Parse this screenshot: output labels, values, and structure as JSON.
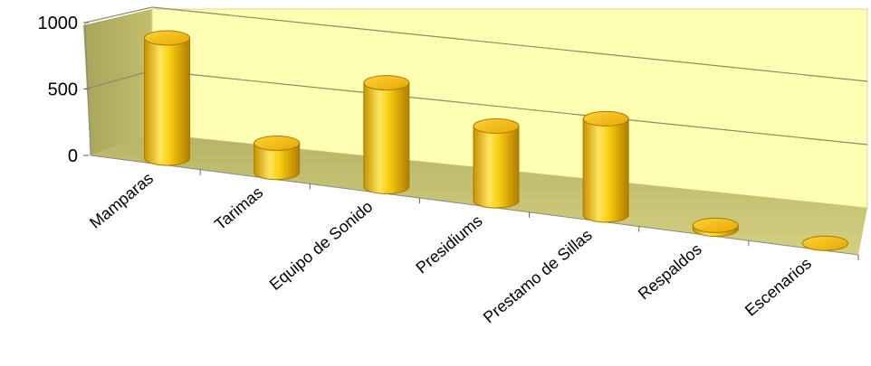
{
  "chart_data": {
    "type": "bar",
    "style": "3d-cylinder",
    "categories": [
      "Mamparas",
      "Tarimas",
      "Equipo de Sonido",
      "Presidiums",
      "Prestamo de Sillas",
      "Respaldos",
      "Escenarios"
    ],
    "values": [
      950,
      230,
      820,
      590,
      760,
      30,
      0
    ],
    "ylim": [
      0,
      1000
    ],
    "yticks": [
      "0",
      "500",
      "1000"
    ],
    "title": "",
    "xlabel": "",
    "ylabel": "",
    "grid": true,
    "legend": "none",
    "colors": {
      "bar_light": "#ffe97a",
      "bar_mid": "#f7c800",
      "bar_dark": "#b98400",
      "back_wall": "#ffffb0",
      "floor": "#c8c470",
      "side_wall": "#b6b262",
      "gridline": "#8a8a6a"
    }
  }
}
